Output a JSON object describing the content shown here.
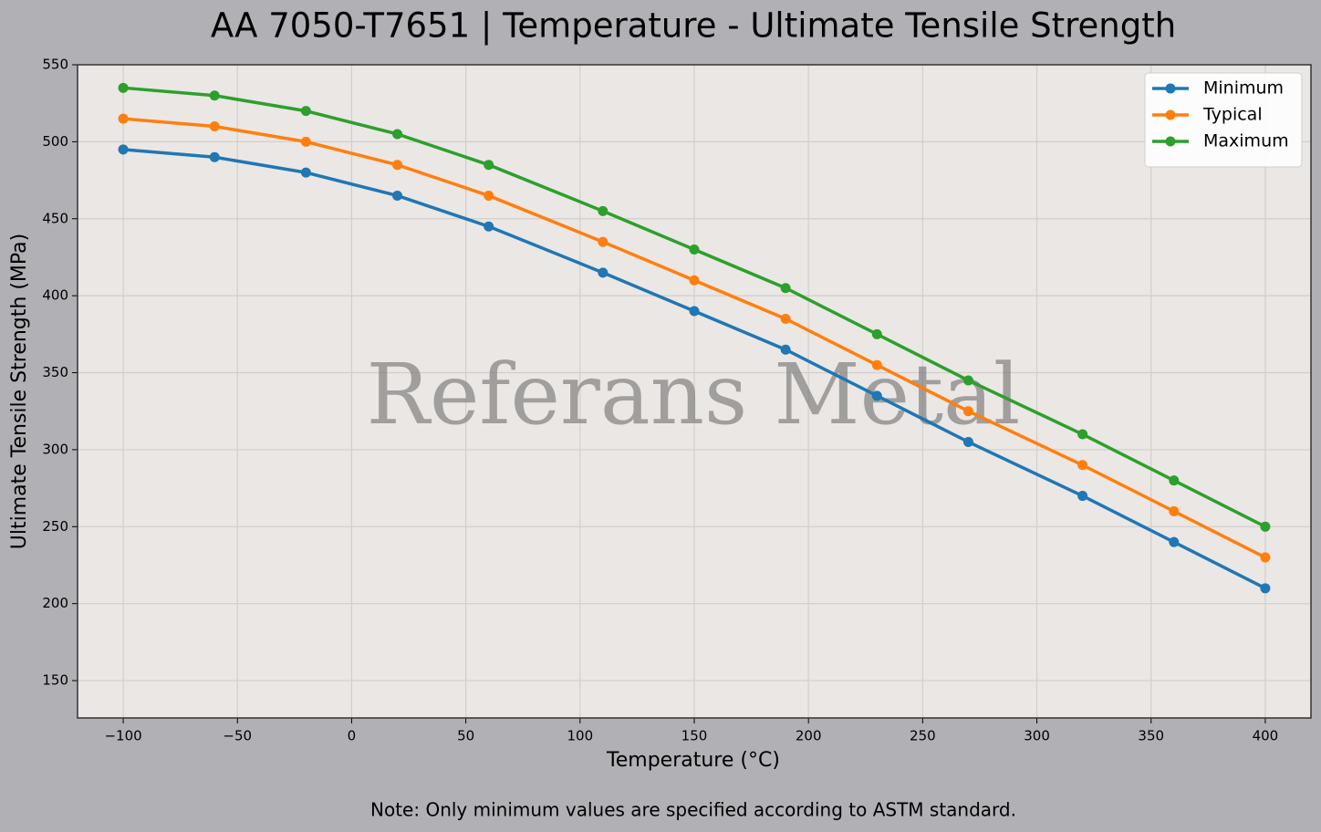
{
  "chart_data": {
    "type": "line",
    "title": "AA 7050-T7651 | Temperature - Ultimate Tensile Strength",
    "x_label": "Temperature (°C)",
    "y_label": "Ultimate Tensile Strength (MPa)",
    "watermark": "Referans Metal",
    "note": "Note: Only minimum values are specified according to ASTM standard.",
    "x": [
      -100,
      -60,
      -20,
      20,
      60,
      110,
      150,
      190,
      230,
      270,
      320,
      360,
      400
    ],
    "series": [
      {
        "name": "Minimum",
        "color": "#1f77b4",
        "values": [
          495,
          490,
          480,
          465,
          445,
          415,
          390,
          365,
          335,
          305,
          270,
          240,
          210
        ]
      },
      {
        "name": "Typical",
        "color": "#ff7f0e",
        "values": [
          515,
          510,
          500,
          485,
          465,
          435,
          410,
          385,
          355,
          325,
          290,
          260,
          230
        ]
      },
      {
        "name": "Maximum",
        "color": "#2ca02c",
        "values": [
          535,
          530,
          520,
          505,
          485,
          455,
          430,
          405,
          375,
          345,
          310,
          280,
          250
        ]
      }
    ],
    "xlim": [
      -120,
      420
    ],
    "xticks": [
      {
        "value": -100,
        "label": "−100"
      },
      {
        "value": -50,
        "label": "−50"
      },
      0,
      50,
      100,
      150,
      200,
      250,
      300,
      350,
      400
    ],
    "ylim": [
      125.75,
      550
    ],
    "yticks": [
      150,
      200,
      250,
      300,
      350,
      400,
      450,
      500,
      550
    ],
    "grid": true,
    "legend": "upper right"
  }
}
